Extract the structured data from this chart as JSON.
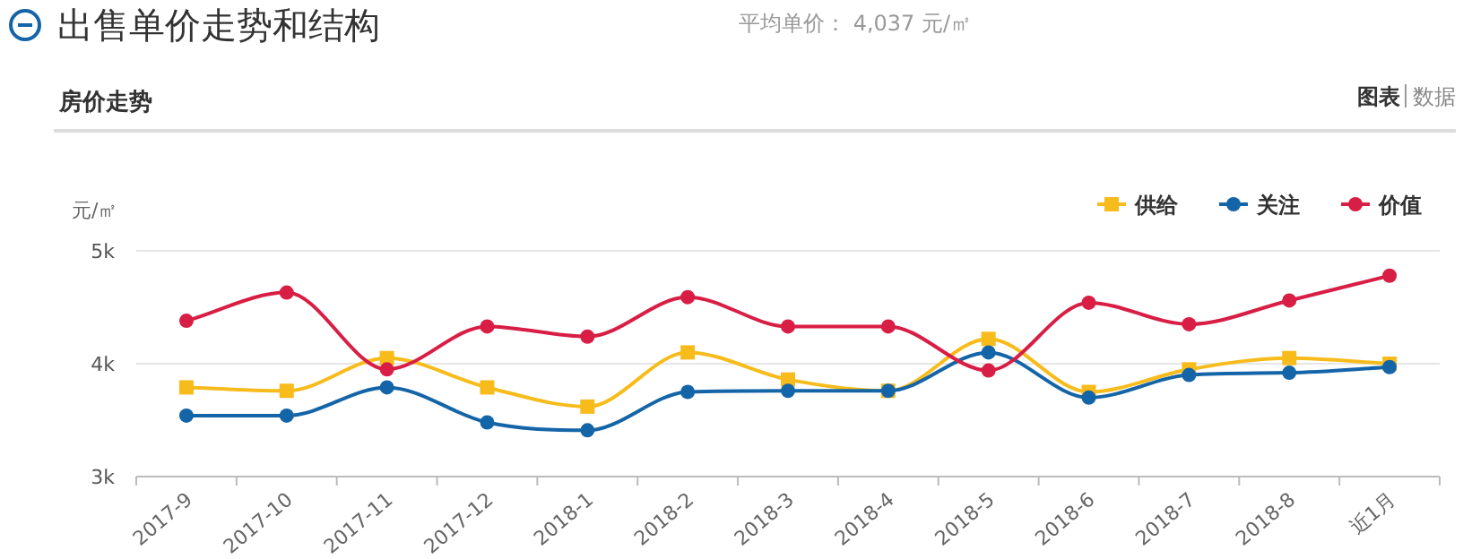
{
  "chart_data": {
    "type": "line",
    "title": "出售单价走势和结构",
    "subtitle": "房价走势",
    "ylabel": "元/㎡",
    "annotations": [
      "平均单价： 4,037 元/㎡",
      "图表",
      "数据"
    ],
    "categories": [
      "2017-9",
      "2017-10",
      "2017-11",
      "2017-12",
      "2018-1",
      "2018-2",
      "2018-3",
      "2018-4",
      "2018-5",
      "2018-6",
      "2018-7",
      "2018-8",
      "近1月"
    ],
    "series": [
      {
        "name": "供给",
        "color": "#f7bc1c",
        "marker": "square",
        "values": [
          3790,
          3760,
          4050,
          3790,
          3620,
          4100,
          3860,
          3760,
          4220,
          3750,
          3950,
          4050,
          4000
        ]
      },
      {
        "name": "关注",
        "color": "#1465a8",
        "marker": "circle",
        "values": [
          3540,
          3540,
          3790,
          3480,
          3410,
          3750,
          3760,
          3760,
          4100,
          3700,
          3900,
          3920,
          3970
        ]
      },
      {
        "name": "价值",
        "color": "#d81e44",
        "marker": "circle",
        "values": [
          4380,
          4630,
          3950,
          4330,
          4240,
          4590,
          4330,
          4330,
          3940,
          4540,
          4350,
          4560,
          4780
        ]
      }
    ],
    "ylim": [
      3000,
      5000
    ],
    "yticks": [
      {
        "value": 3000,
        "label": "3k"
      },
      {
        "value": 4000,
        "label": "4k"
      },
      {
        "value": 5000,
        "label": "5k"
      }
    ],
    "grid": "y",
    "legend": "top right"
  }
}
